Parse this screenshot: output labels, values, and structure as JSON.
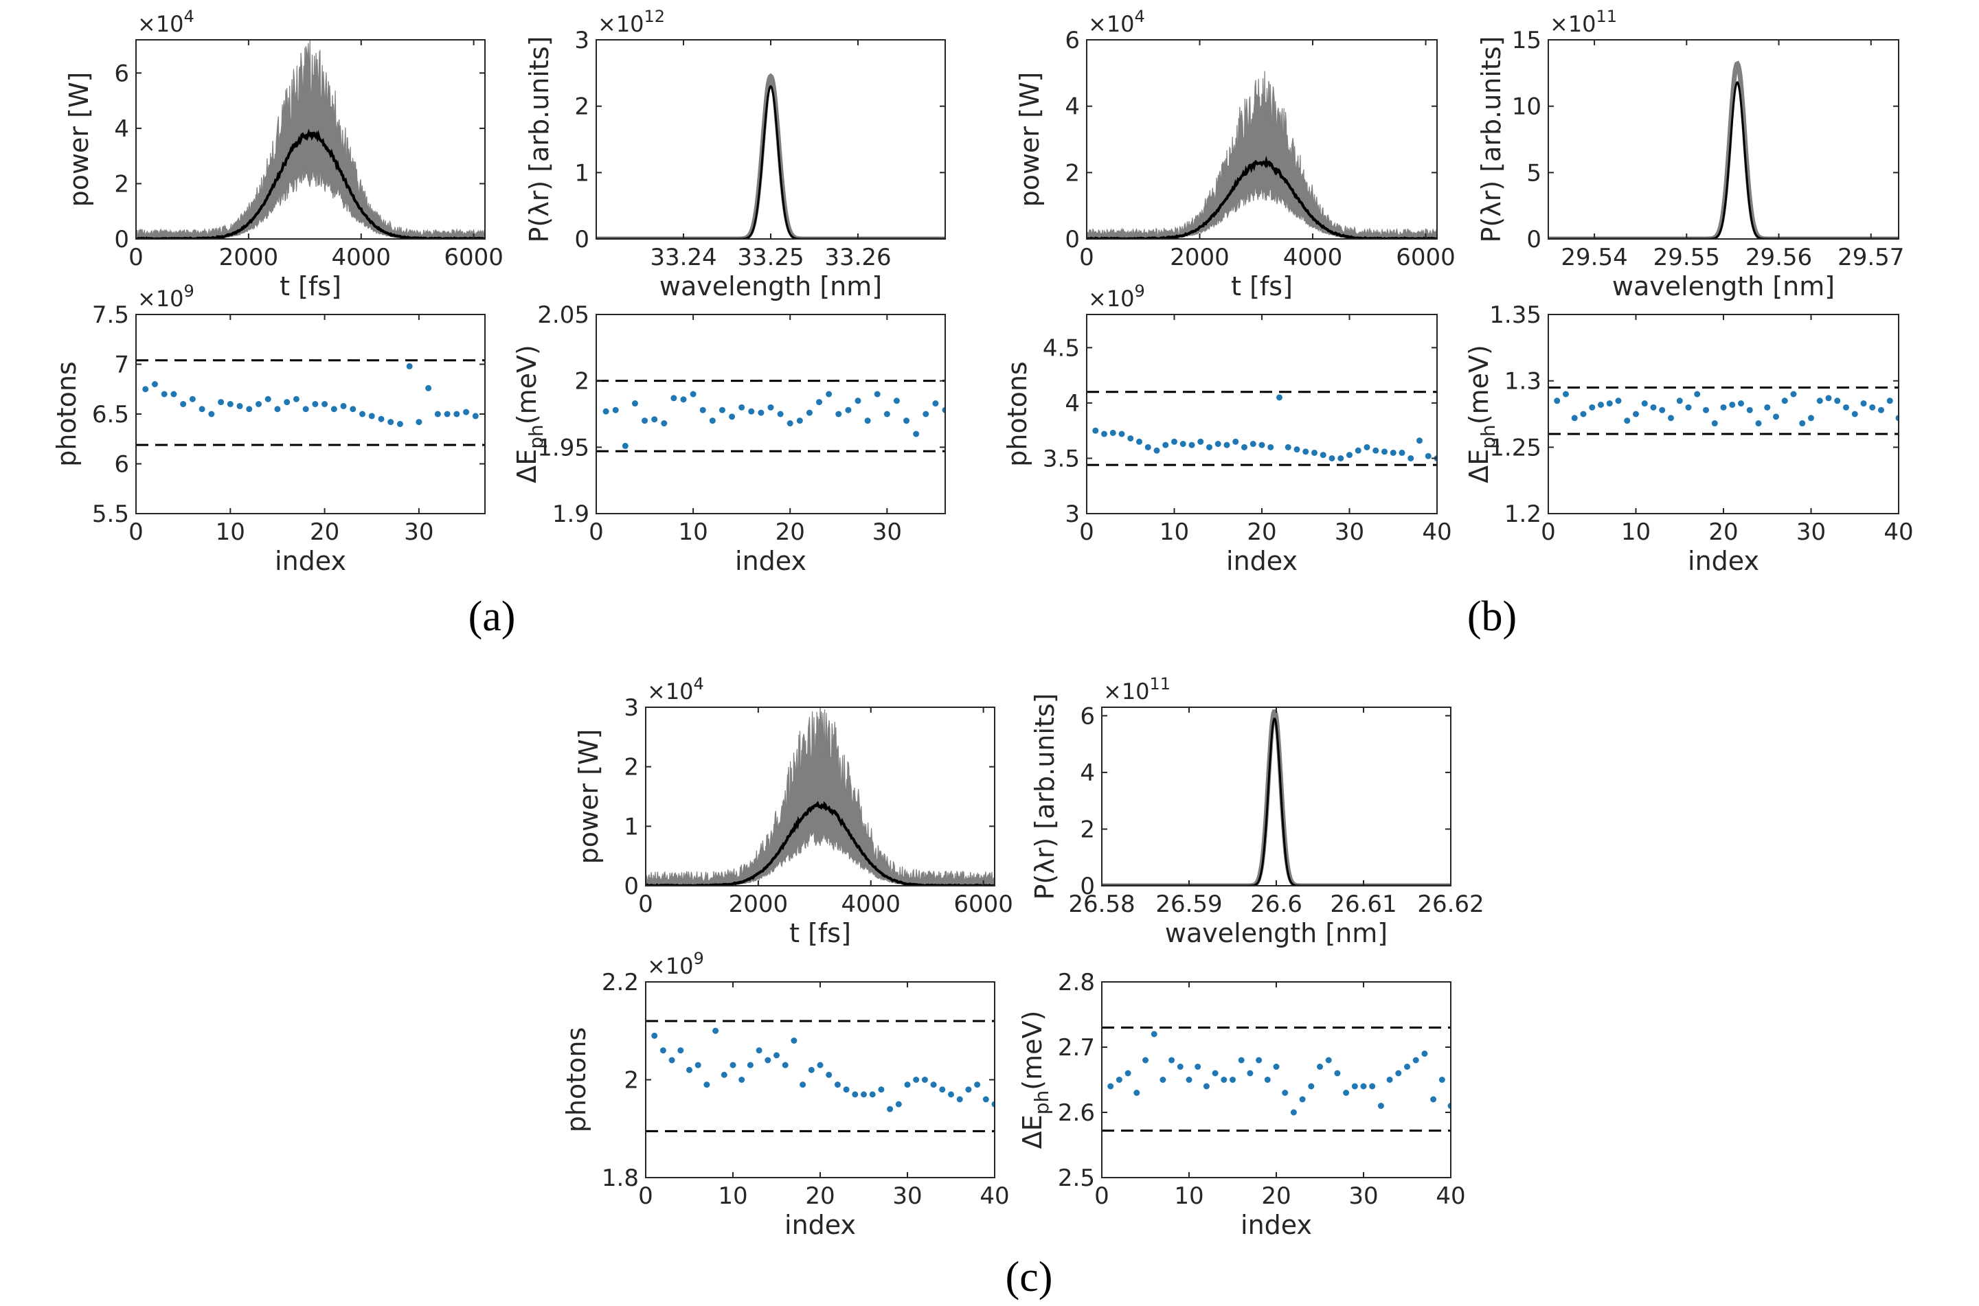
{
  "panel_labels": [
    "(a)",
    "(b)",
    "(c)"
  ],
  "colors": {
    "shot_band": "#7f7f7f",
    "mean_line": "#000000",
    "points": "#1f77b4",
    "threshold": "#000000",
    "axes": "#262626"
  },
  "chart_data": [
    {
      "id": "a-power",
      "type": "area",
      "xlabel": "t [fs]",
      "ylabel": "power [W]",
      "y_multiplier": "×10^4",
      "xlim": [
        0,
        6200
      ],
      "ylim": [
        0,
        7.2
      ],
      "xticks": [
        0,
        2000,
        4000,
        6000
      ],
      "yticks": [
        0,
        2,
        4,
        6
      ],
      "series": [
        {
          "kind": "mean",
          "center": 3100,
          "sigma": 560,
          "peak": 3.8
        }
      ],
      "band": {
        "baseline": 0.2,
        "peak": 7.0,
        "noise_floor": 0.35
      }
    },
    {
      "id": "a-spectrum",
      "type": "line",
      "xlabel": "wavelength [nm]",
      "ylabel": "P(λr) [arb.units]",
      "y_multiplier": "×10^12",
      "xlim": [
        33.23,
        33.27
      ],
      "ylim": [
        0,
        3
      ],
      "xticks": [
        33.24,
        33.25,
        33.26
      ],
      "yticks": [
        0,
        1,
        2,
        3
      ],
      "series": [
        {
          "kind": "mean",
          "center": 33.25,
          "sigma": 0.00085,
          "peak": 2.3
        }
      ],
      "band_peak": 2.45
    },
    {
      "id": "a-photons",
      "type": "scatter",
      "xlabel": "index",
      "ylabel": "photons",
      "y_multiplier": "×10^9",
      "xlim": [
        0,
        37
      ],
      "ylim": [
        5.5,
        7.5
      ],
      "xticks": [
        0,
        10,
        20,
        30
      ],
      "yticks": [
        5.5,
        6,
        6.5,
        7,
        7.5
      ],
      "thresholds": [
        6.19,
        7.04
      ],
      "values": [
        6.75,
        6.8,
        6.7,
        6.7,
        6.6,
        6.65,
        6.55,
        6.5,
        6.62,
        6.6,
        6.58,
        6.55,
        6.6,
        6.65,
        6.55,
        6.62,
        6.65,
        6.55,
        6.6,
        6.6,
        6.55,
        6.58,
        6.55,
        6.5,
        6.48,
        6.45,
        6.42,
        6.4,
        6.98,
        6.42,
        6.76,
        6.5,
        6.5,
        6.5,
        6.52,
        6.48
      ]
    },
    {
      "id": "a-energy",
      "type": "scatter",
      "xlabel": "index",
      "ylabel": "ΔE_ph(meV)",
      "y_multiplier": "",
      "xlim": [
        0,
        36
      ],
      "ylim": [
        1.9,
        2.05
      ],
      "xticks": [
        0,
        10,
        20,
        30
      ],
      "yticks": [
        1.9,
        1.95,
        2,
        2.05
      ],
      "thresholds": [
        1.947,
        2.0
      ],
      "values": [
        1.977,
        1.978,
        1.951,
        1.983,
        1.97,
        1.971,
        1.968,
        1.987,
        1.986,
        1.99,
        1.978,
        1.97,
        1.978,
        1.973,
        1.98,
        1.977,
        1.976,
        1.98,
        1.975,
        1.968,
        1.97,
        1.976,
        1.984,
        1.99,
        1.975,
        1.978,
        1.985,
        1.97,
        1.99,
        1.975,
        1.985,
        1.97,
        1.96,
        1.975,
        1.983,
        1.978,
        1.962
      ]
    },
    {
      "id": "b-power",
      "type": "area",
      "xlabel": "t [fs]",
      "ylabel": "power [W]",
      "y_multiplier": "×10^4",
      "xlim": [
        0,
        6200
      ],
      "ylim": [
        0,
        6
      ],
      "xticks": [
        0,
        2000,
        4000,
        6000
      ],
      "yticks": [
        0,
        2,
        4,
        6
      ],
      "series": [
        {
          "kind": "mean",
          "center": 3100,
          "sigma": 560,
          "peak": 2.3
        }
      ],
      "band": {
        "baseline": 0.15,
        "peak": 4.8,
        "noise_floor": 0.3
      }
    },
    {
      "id": "b-spectrum",
      "type": "line",
      "xlabel": "wavelength [nm]",
      "ylabel": "P(λr) [arb.units]",
      "y_multiplier": "×10^11",
      "xlim": [
        29.535,
        29.573
      ],
      "ylim": [
        0,
        15
      ],
      "xticks": [
        29.54,
        29.55,
        29.56,
        29.57
      ],
      "yticks": [
        0,
        5,
        10,
        15
      ],
      "series": [
        {
          "kind": "mean",
          "center": 29.5555,
          "sigma": 0.00075,
          "peak": 11.8
        }
      ],
      "band_peak": 13.2
    },
    {
      "id": "b-photons",
      "type": "scatter",
      "xlabel": "index",
      "ylabel": "photons",
      "y_multiplier": "×10^9",
      "xlim": [
        0,
        40
      ],
      "ylim": [
        3,
        4.8
      ],
      "xticks": [
        0,
        10,
        20,
        30,
        40
      ],
      "yticks": [
        3,
        3.5,
        4,
        4.5
      ],
      "thresholds": [
        3.44,
        4.1
      ],
      "values": [
        3.75,
        3.72,
        3.73,
        3.72,
        3.68,
        3.65,
        3.6,
        3.57,
        3.62,
        3.65,
        3.63,
        3.62,
        3.65,
        3.6,
        3.63,
        3.62,
        3.65,
        3.6,
        3.63,
        3.62,
        3.6,
        4.05,
        3.6,
        3.58,
        3.56,
        3.55,
        3.53,
        3.5,
        3.5,
        3.53,
        3.57,
        3.6,
        3.57,
        3.56,
        3.55,
        3.55,
        3.5,
        3.66,
        3.52,
        3.5
      ]
    },
    {
      "id": "b-energy",
      "type": "scatter",
      "xlabel": "index",
      "ylabel": "ΔE_ph(meV)",
      "y_multiplier": "",
      "xlim": [
        0,
        40
      ],
      "ylim": [
        1.2,
        1.35
      ],
      "xticks": [
        0,
        10,
        20,
        30,
        40
      ],
      "yticks": [
        1.2,
        1.25,
        1.3,
        1.35
      ],
      "thresholds": [
        1.26,
        1.295
      ],
      "values": [
        1.285,
        1.29,
        1.272,
        1.275,
        1.28,
        1.282,
        1.283,
        1.285,
        1.27,
        1.275,
        1.283,
        1.28,
        1.278,
        1.272,
        1.285,
        1.28,
        1.29,
        1.278,
        1.268,
        1.28,
        1.282,
        1.283,
        1.278,
        1.268,
        1.28,
        1.273,
        1.285,
        1.29,
        1.268,
        1.272,
        1.285,
        1.287,
        1.285,
        1.28,
        1.275,
        1.283,
        1.28,
        1.278,
        1.285,
        1.272
      ]
    },
    {
      "id": "c-power",
      "type": "area",
      "xlabel": "t [fs]",
      "ylabel": "power [W]",
      "y_multiplier": "×10^4",
      "xlim": [
        0,
        6200
      ],
      "ylim": [
        0,
        3
      ],
      "xticks": [
        0,
        2000,
        4000,
        6000
      ],
      "yticks": [
        0,
        1,
        2,
        3
      ],
      "series": [
        {
          "kind": "mean",
          "center": 3100,
          "sigma": 560,
          "peak": 1.35
        }
      ],
      "band": {
        "baseline": 0.1,
        "peak": 2.95,
        "noise_floor": 0.25
      }
    },
    {
      "id": "c-spectrum",
      "type": "line",
      "xlabel": "wavelength [nm]",
      "ylabel": "P(λr) [arb.units]",
      "y_multiplier": "×10^11",
      "xlim": [
        26.58,
        26.62
      ],
      "ylim": [
        0,
        6.3
      ],
      "xticks": [
        26.58,
        26.59,
        26.6,
        26.61,
        26.62
      ],
      "yticks": [
        0,
        2,
        4,
        6
      ],
      "series": [
        {
          "kind": "mean",
          "center": 26.5998,
          "sigma": 0.00068,
          "peak": 5.9
        }
      ],
      "band_peak": 6.15
    },
    {
      "id": "c-photons",
      "type": "scatter",
      "xlabel": "index",
      "ylabel": "photons",
      "y_multiplier": "×10^9",
      "xlim": [
        0,
        40
      ],
      "ylim": [
        1.8,
        2.2
      ],
      "xticks": [
        0,
        10,
        20,
        30,
        40
      ],
      "yticks": [
        1.8,
        2,
        2.2
      ],
      "thresholds": [
        1.895,
        2.12
      ],
      "values": [
        2.09,
        2.06,
        2.04,
        2.06,
        2.02,
        2.03,
        1.99,
        2.1,
        2.01,
        2.03,
        2.0,
        2.03,
        2.06,
        2.04,
        2.05,
        2.03,
        2.08,
        1.99,
        2.02,
        2.03,
        2.01,
        1.99,
        1.98,
        1.97,
        1.97,
        1.97,
        1.98,
        1.94,
        1.95,
        1.99,
        2.0,
        2.0,
        1.99,
        1.98,
        1.97,
        1.96,
        1.98,
        1.99,
        1.96,
        1.95
      ]
    },
    {
      "id": "c-energy",
      "type": "scatter",
      "xlabel": "index",
      "ylabel": "ΔE_ph(meV)",
      "y_multiplier": "",
      "xlim": [
        0,
        40
      ],
      "ylim": [
        2.5,
        2.8
      ],
      "xticks": [
        0,
        10,
        20,
        30,
        40
      ],
      "yticks": [
        2.5,
        2.6,
        2.7,
        2.8
      ],
      "thresholds": [
        2.572,
        2.73
      ],
      "values": [
        2.64,
        2.65,
        2.66,
        2.63,
        2.68,
        2.72,
        2.65,
        2.68,
        2.67,
        2.65,
        2.67,
        2.64,
        2.66,
        2.65,
        2.65,
        2.68,
        2.66,
        2.68,
        2.65,
        2.67,
        2.63,
        2.6,
        2.62,
        2.64,
        2.67,
        2.68,
        2.66,
        2.63,
        2.64,
        2.64,
        2.64,
        2.61,
        2.65,
        2.66,
        2.67,
        2.68,
        2.69,
        2.62,
        2.65,
        2.61
      ]
    }
  ]
}
